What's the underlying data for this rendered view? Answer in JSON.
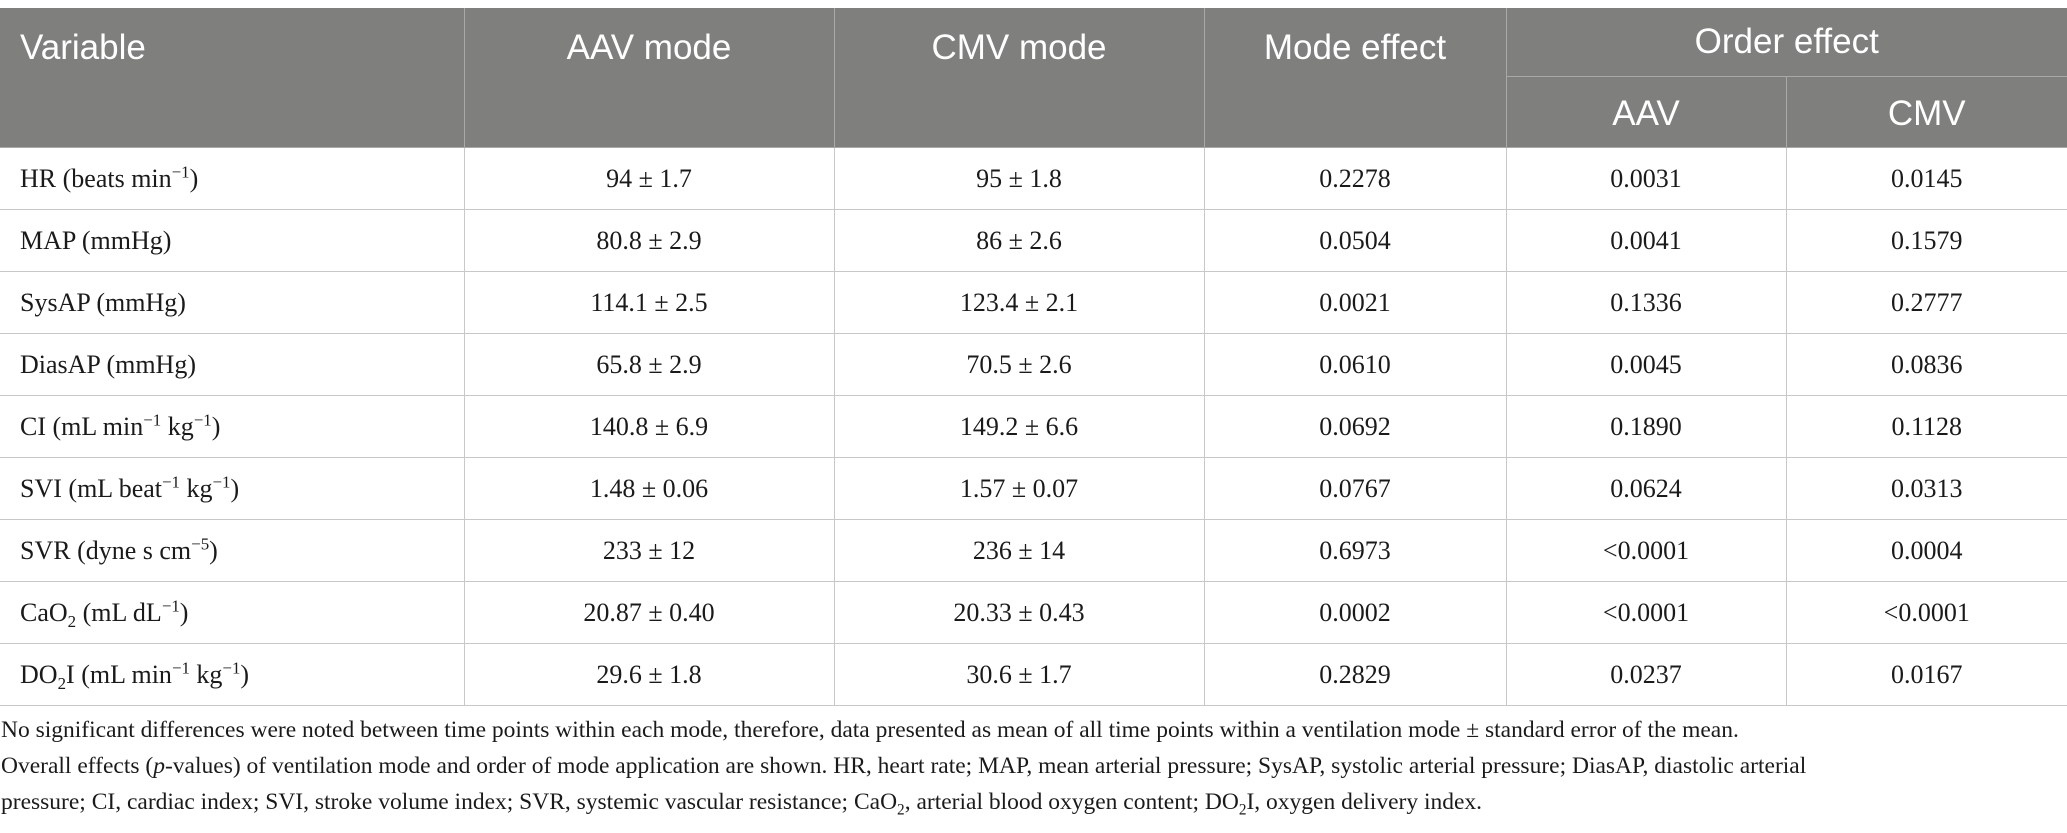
{
  "table": {
    "headers": {
      "variable": "Variable",
      "aav_mode": "AAV mode",
      "cmv_mode": "CMV mode",
      "mode_effect": "Mode effect",
      "order_effect": "Order effect",
      "order_aav": "AAV",
      "order_cmv": "CMV"
    },
    "rows": [
      {
        "var": "HR",
        "unit": "(beats min",
        "unit_sup": "−1",
        "unit_tail": ")",
        "aav": "94 ± 1.7",
        "cmv": "95 ± 1.8",
        "mode": "0.2278",
        "order_aav": "0.0031",
        "order_cmv": "0.0145"
      },
      {
        "var": "MAP",
        "unit": "(mmHg)",
        "aav": "80.8 ± 2.9",
        "cmv": "86 ± 2.6",
        "mode": "0.0504",
        "order_aav": "0.0041",
        "order_cmv": "0.1579"
      },
      {
        "var": "SysAP",
        "unit": "(mmHg)",
        "aav": "114.1 ± 2.5",
        "cmv": "123.4 ± 2.1",
        "mode": "0.0021",
        "order_aav": "0.1336",
        "order_cmv": "0.2777"
      },
      {
        "var": "DiasAP",
        "unit": "(mmHg)",
        "aav": "65.8 ± 2.9",
        "cmv": "70.5 ± 2.6",
        "mode": "0.0610",
        "order_aav": "0.0045",
        "order_cmv": "0.0836"
      },
      {
        "var": "CI",
        "unit_a": "(mL min",
        "sup_a": "−1",
        "unit_b": " kg",
        "sup_b": "−1",
        "unit_c": ")",
        "aav": "140.8 ± 6.9",
        "cmv": "149.2 ± 6.6",
        "mode": "0.0692",
        "order_aav": "0.1890",
        "order_cmv": "0.1128"
      },
      {
        "var": "SVI",
        "unit_a": "(mL beat",
        "sup_a": "−1",
        "unit_b": " kg",
        "sup_b": "−1",
        "unit_c": ")",
        "aav": "1.48 ± 0.06",
        "cmv": "1.57 ± 0.07",
        "mode": "0.0767",
        "order_aav": "0.0624",
        "order_cmv": "0.0313"
      },
      {
        "var": "SVR",
        "unit": "(dyne s cm",
        "unit_sup": "−5",
        "unit_tail": ")",
        "aav": "233 ± 12",
        "cmv": "236 ± 14",
        "mode": "0.6973",
        "order_aav": "<0.0001",
        "order_cmv": "0.0004"
      },
      {
        "var": "CaO",
        "var_sub": "2",
        "unit": "(mL dL",
        "unit_sup": "−1",
        "unit_tail": ")",
        "aav": "20.87 ± 0.40",
        "cmv": "20.33 ± 0.43",
        "mode": "0.0002",
        "order_aav": "<0.0001",
        "order_cmv": "<0.0001"
      },
      {
        "var": "DO",
        "var_sub": "2",
        "var_tail": "I",
        "unit_a": "(mL min",
        "sup_a": "−1",
        "unit_b": " kg",
        "sup_b": "−1",
        "unit_c": ")",
        "aav": "29.6 ± 1.8",
        "cmv": "30.6 ± 1.7",
        "mode": "0.2829",
        "order_aav": "0.0237",
        "order_cmv": "0.0167"
      }
    ]
  },
  "footnote": {
    "l1": "No significant differences were noted between time points within each mode, therefore, data presented as mean of all time points within a ventilation mode ± standard error of the mean.",
    "l2a": "Overall effects (",
    "l2b": "p",
    "l2c": "-values) of ventilation mode and order of mode application are shown. HR, heart rate; MAP, mean arterial pressure; SysAP, systolic arterial pressure; DiasAP, diastolic arterial",
    "l3": "pressure; CI, cardiac index; SVI, stroke volume index; SVR, systemic vascular resistance; CaO",
    "l3_sub": "2",
    "l3_tail": ", arterial blood oxygen content; DO",
    "l4_sub": "2",
    "l4_tail": "I, oxygen delivery index."
  }
}
